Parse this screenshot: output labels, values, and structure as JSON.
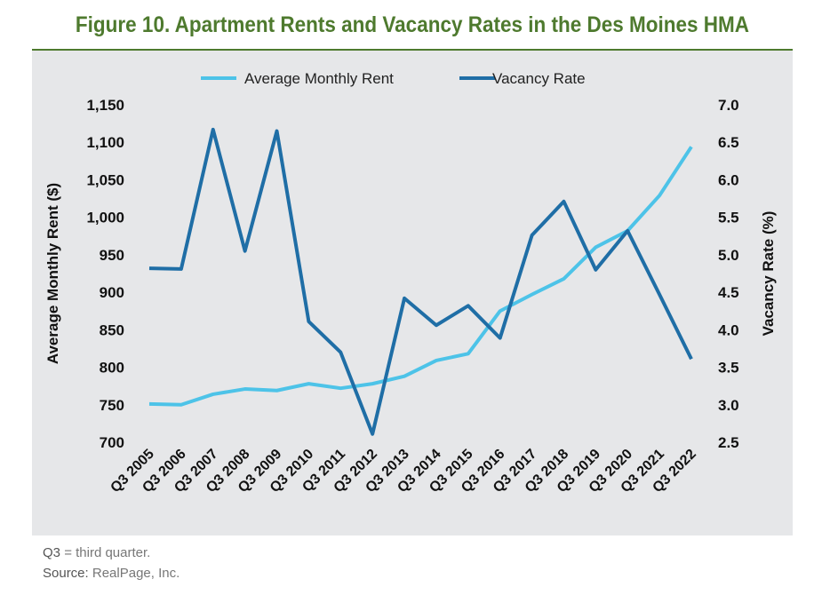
{
  "chart_data": {
    "type": "line",
    "title": "Figure 10. Apartment Rents and Vacancy Rates in the Des Moines HMA",
    "categories": [
      "Q3 2005",
      "Q3 2006",
      "Q3 2007",
      "Q3 2008",
      "Q3 2009",
      "Q3 2010",
      "Q3 2011",
      "Q3 2012",
      "Q3 2013",
      "Q3 2014",
      "Q3 2015",
      "Q3 2016",
      "Q3 2017",
      "Q3 2018",
      "Q3 2019",
      "Q3 2020",
      "Q3 2021",
      "Q3 2022"
    ],
    "series": [
      {
        "name": "Average Monthly Rent",
        "axis": "left",
        "color": "#4dc3e8",
        "values": [
          751,
          750,
          764,
          771,
          769,
          778,
          772,
          778,
          788,
          809,
          818,
          875,
          897,
          918,
          960,
          982,
          1029,
          1094
        ]
      },
      {
        "name": "Vacancy Rate",
        "axis": "right",
        "color": "#1f6ea6",
        "values": [
          4.82,
          4.81,
          6.67,
          5.05,
          6.65,
          4.11,
          3.7,
          2.61,
          4.42,
          4.06,
          4.32,
          3.89,
          5.26,
          5.71,
          4.8,
          5.32,
          4.47,
          3.61
        ]
      }
    ],
    "ylabel": "Average Monthly Rent ($)",
    "ylim": [
      700,
      1150
    ],
    "yticks": [
      "700",
      "750",
      "800",
      "850",
      "900",
      "950",
      "1,000",
      "1,050",
      "1,100",
      "1,150"
    ],
    "y2label": "Vacancy Rate (%)",
    "y2lim": [
      2.5,
      7.0
    ],
    "y2ticks": [
      "2.5",
      "3.0",
      "3.5",
      "4.0",
      "4.5",
      "5.0",
      "5.5",
      "6.0",
      "6.5",
      "7.0"
    ],
    "legend": "top-center",
    "grid": false
  },
  "footnote": {
    "abbr": "Q3",
    "abbr_text": "= third quarter.",
    "source_label": "Source:",
    "source_text": "RealPage, Inc."
  }
}
